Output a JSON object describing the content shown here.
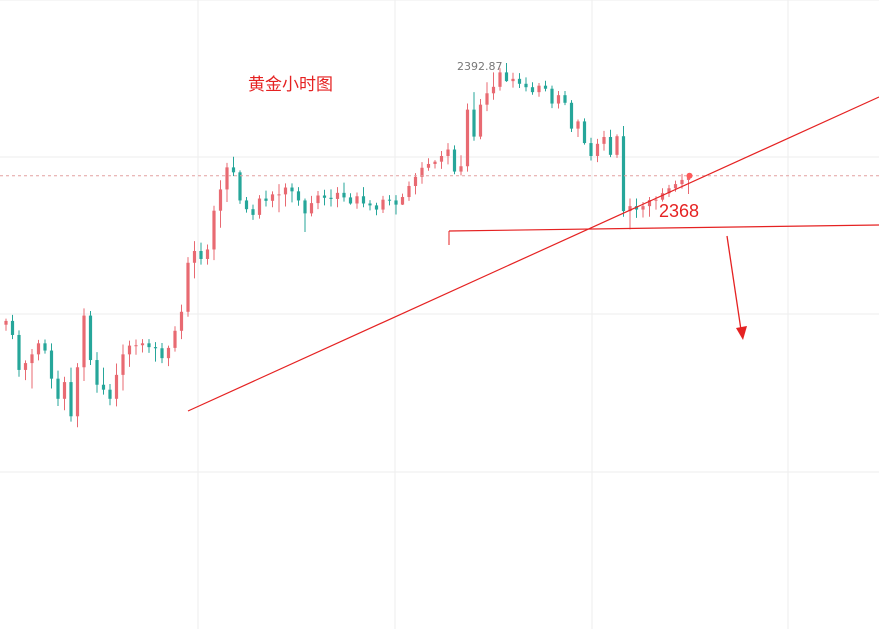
{
  "chart_data": {
    "type": "candlestick",
    "title": "黄金小时图",
    "peak_label": "2392.87",
    "level_label": "2368",
    "colors": {
      "up": "#e86a72",
      "down": "#26a69a",
      "annotation": "#e52222",
      "grid": "#eeeeee",
      "guide": "#e4a0a0"
    },
    "candles": [
      [
        2324.0,
        2325.6,
        2322.4,
        2325.0
      ],
      [
        2325.0,
        2326.6,
        2320.2,
        2321.3
      ],
      [
        2321.3,
        2322.5,
        2310.3,
        2312.1
      ],
      [
        2312.1,
        2314.6,
        2309.4,
        2313.9
      ],
      [
        2313.9,
        2317.6,
        2307.2,
        2316.2
      ],
      [
        2316.2,
        2320.0,
        2314.6,
        2319.1
      ],
      [
        2319.1,
        2320.1,
        2316.4,
        2317.2
      ],
      [
        2317.2,
        2319.1,
        2307.2,
        2309.8
      ],
      [
        2309.8,
        2311.9,
        2302.6,
        2304.5
      ],
      [
        2304.5,
        2310.3,
        2301.5,
        2308.9
      ],
      [
        2308.9,
        2312.7,
        2298.5,
        2299.9
      ],
      [
        2299.9,
        2313.9,
        2297.0,
        2312.8
      ],
      [
        2312.8,
        2328.3,
        2309.2,
        2326.4
      ],
      [
        2326.4,
        2327.6,
        2313.4,
        2314.7
      ],
      [
        2314.7,
        2316.8,
        2306.1,
        2308.2
      ],
      [
        2308.2,
        2312.7,
        2305.6,
        2306.9
      ],
      [
        2306.9,
        2308.4,
        2302.8,
        2304.5
      ],
      [
        2304.5,
        2313.8,
        2302.5,
        2310.8
      ],
      [
        2310.8,
        2318.8,
        2306.7,
        2316.2
      ],
      [
        2316.2,
        2319.8,
        2312.9,
        2318.5
      ],
      [
        2318.5,
        2320.1,
        2316.1,
        2318.6
      ],
      [
        2318.6,
        2320.2,
        2316.7,
        2319.1
      ],
      [
        2319.1,
        2320.2,
        2316.6,
        2318.1
      ],
      [
        2318.1,
        2319.4,
        2314.3,
        2317.8
      ],
      [
        2317.8,
        2319.2,
        2313.9,
        2315.2
      ],
      [
        2315.2,
        2318.5,
        2313.1,
        2317.9
      ],
      [
        2317.9,
        2323.6,
        2316.9,
        2322.4
      ],
      [
        2322.4,
        2329.3,
        2320.2,
        2327.4
      ],
      [
        2327.4,
        2341.8,
        2326.1,
        2340.3
      ],
      [
        2340.3,
        2346.0,
        2336.2,
        2343.4
      ],
      [
        2343.4,
        2345.6,
        2339.8,
        2341.3
      ],
      [
        2341.3,
        2345.1,
        2339.8,
        2343.8
      ],
      [
        2343.8,
        2355.3,
        2341.0,
        2354.0
      ],
      [
        2354.0,
        2362.0,
        2349.5,
        2359.6
      ],
      [
        2359.6,
        2366.6,
        2356.3,
        2365.4
      ],
      [
        2365.4,
        2368.2,
        2363.1,
        2364.1
      ],
      [
        2364.1,
        2364.6,
        2355.8,
        2356.7
      ],
      [
        2356.7,
        2357.6,
        2353.5,
        2354.4
      ],
      [
        2354.4,
        2355.6,
        2351.6,
        2352.9
      ],
      [
        2352.9,
        2358.1,
        2351.9,
        2357.2
      ],
      [
        2357.2,
        2359.3,
        2355.1,
        2356.6
      ],
      [
        2356.6,
        2359.1,
        2354.9,
        2358.3
      ],
      [
        2358.3,
        2361.0,
        2353.6,
        2358.3
      ],
      [
        2358.3,
        2361.2,
        2355.1,
        2360.1
      ],
      [
        2360.1,
        2361.2,
        2356.2,
        2359.1
      ],
      [
        2359.1,
        2360.2,
        2355.3,
        2356.7
      ],
      [
        2356.7,
        2357.2,
        2348.4,
        2353.3
      ],
      [
        2353.3,
        2357.9,
        2352.5,
        2356.0
      ],
      [
        2356.0,
        2359.2,
        2354.4,
        2358.0
      ],
      [
        2358.0,
        2359.5,
        2355.4,
        2357.4
      ],
      [
        2357.4,
        2359.6,
        2355.1,
        2357.1
      ],
      [
        2357.1,
        2360.2,
        2354.9,
        2358.7
      ],
      [
        2358.7,
        2361.4,
        2356.4,
        2357.5
      ],
      [
        2357.5,
        2358.6,
        2355.6,
        2355.9
      ],
      [
        2355.9,
        2358.8,
        2354.5,
        2357.8
      ],
      [
        2357.8,
        2360.2,
        2354.9,
        2355.9
      ],
      [
        2355.9,
        2356.8,
        2354.1,
        2355.4
      ],
      [
        2355.4,
        2356.1,
        2352.8,
        2354.3
      ],
      [
        2354.3,
        2357.9,
        2353.4,
        2356.9
      ],
      [
        2356.9,
        2358.1,
        2355.4,
        2356.7
      ],
      [
        2356.7,
        2358.1,
        2353.0,
        2355.6
      ],
      [
        2355.6,
        2358.5,
        2355.5,
        2357.6
      ],
      [
        2357.6,
        2361.7,
        2356.6,
        2360.5
      ],
      [
        2360.5,
        2363.9,
        2358.3,
        2362.9
      ],
      [
        2362.9,
        2366.8,
        2361.1,
        2365.3
      ],
      [
        2365.3,
        2367.8,
        2364.5,
        2366.3
      ],
      [
        2366.3,
        2367.3,
        2365.1,
        2366.9
      ],
      [
        2366.9,
        2369.7,
        2365.0,
        2368.4
      ],
      [
        2368.4,
        2371.8,
        2366.2,
        2370.1
      ],
      [
        2370.1,
        2371.2,
        2363.6,
        2364.3
      ],
      [
        2364.3,
        2368.6,
        2363.3,
        2365.7
      ],
      [
        2365.7,
        2382.2,
        2364.3,
        2380.6
      ],
      [
        2380.6,
        2385.2,
        2372.4,
        2373.5
      ],
      [
        2373.5,
        2383.4,
        2372.8,
        2381.9
      ],
      [
        2381.9,
        2387.8,
        2380.2,
        2384.9
      ],
      [
        2384.9,
        2390.4,
        2383.2,
        2386.6
      ],
      [
        2386.6,
        2391.5,
        2385.6,
        2390.4
      ],
      [
        2390.4,
        2392.87,
        2387.9,
        2388.1
      ],
      [
        2388.1,
        2390.3,
        2386.4,
        2388.7
      ],
      [
        2388.7,
        2390.2,
        2386.3,
        2387.4
      ],
      [
        2387.4,
        2389.1,
        2385.4,
        2386.5
      ],
      [
        2386.5,
        2387.8,
        2384.5,
        2385.2
      ],
      [
        2385.2,
        2387.6,
        2384.0,
        2386.9
      ],
      [
        2386.9,
        2388.2,
        2385.4,
        2386.1
      ],
      [
        2386.1,
        2386.9,
        2381.0,
        2382.2
      ],
      [
        2382.2,
        2385.5,
        2380.9,
        2384.4
      ],
      [
        2384.4,
        2385.5,
        2381.8,
        2382.4
      ],
      [
        2382.4,
        2383.1,
        2374.7,
        2375.6
      ],
      [
        2375.6,
        2378.0,
        2373.4,
        2377.5
      ],
      [
        2377.5,
        2378.3,
        2371.4,
        2371.8
      ],
      [
        2371.8,
        2373.2,
        2367.2,
        2368.4
      ],
      [
        2368.4,
        2372.9,
        2366.8,
        2371.6
      ],
      [
        2371.6,
        2375.0,
        2369.8,
        2373.4
      ],
      [
        2373.4,
        2375.3,
        2368.1,
        2368.7
      ],
      [
        2368.7,
        2374.1,
        2367.9,
        2373.6
      ],
      [
        2373.6,
        2376.3,
        2352.4,
        2353.9
      ],
      [
        2353.9,
        2357.2,
        2349.1,
        2355.2
      ],
      [
        2355.2,
        2357.2,
        2352.1,
        2354.3
      ],
      [
        2354.3,
        2356.3,
        2352.2,
        2355.2
      ],
      [
        2355.2,
        2357.6,
        2352.4,
        2356.8
      ],
      [
        2356.8,
        2357.8,
        2354.3,
        2356.9
      ],
      [
        2356.9,
        2359.9,
        2356.4,
        2358.6
      ],
      [
        2358.6,
        2360.8,
        2357.6,
        2359.9
      ],
      [
        2359.9,
        2361.9,
        2359.0,
        2361.0
      ],
      [
        2361.0,
        2363.7,
        2359.8,
        2362.1
      ],
      [
        2362.1,
        2363.9,
        2358.4,
        2363.2
      ]
    ]
  }
}
